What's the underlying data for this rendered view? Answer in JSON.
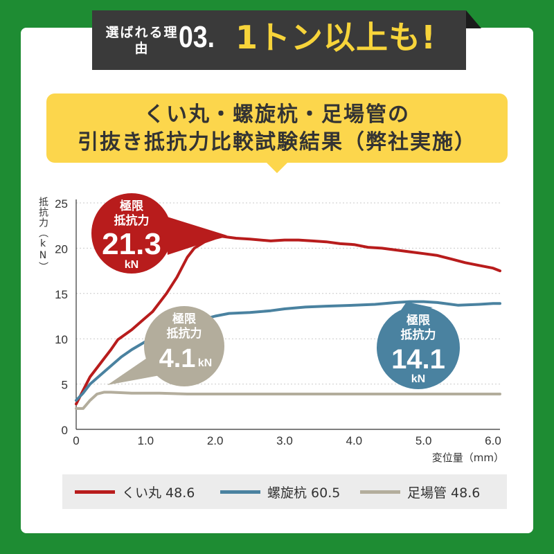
{
  "header": {
    "reason_label": "選ばれる理由",
    "reason_num": "03.",
    "reason_text": "1トン以上も!"
  },
  "title": {
    "line1": "くい丸・螺旋杭・足場管の",
    "line2": "引抜き抵抗力比較試験結果（弊社実施）"
  },
  "colors": {
    "background": "#1e8c33",
    "header_accent": "#f7d43a",
    "title_box": "#fcd64c",
    "kuimaru": "#b81c1c",
    "rasenkui": "#4a82a0",
    "ashibakan": "#b3ad9c"
  },
  "chart_data": {
    "type": "line",
    "ylabel": "抵抗力（kN）",
    "xlabel": "変位量（mm）",
    "xlim": [
      0,
      6.1
    ],
    "ylim": [
      0,
      25
    ],
    "xticks": [
      "0",
      "1.0",
      "2.0",
      "3.0",
      "4.0",
      "5.0",
      "6.0"
    ],
    "yticks": [
      "0",
      "5",
      "10",
      "15",
      "20",
      "25"
    ],
    "grid": true,
    "legend_position": "bottom",
    "series": [
      {
        "name": "くい丸 48.6",
        "color": "#b81c1c",
        "x": [
          0.0,
          0.1,
          0.2,
          0.3,
          0.4,
          0.5,
          0.6,
          0.8,
          0.95,
          1.1,
          1.3,
          1.45,
          1.6,
          1.7,
          1.85,
          2.0,
          2.1,
          2.3,
          2.5,
          2.8,
          3.0,
          3.2,
          3.4,
          3.6,
          3.8,
          4.0,
          4.2,
          4.4,
          4.6,
          4.8,
          5.0,
          5.2,
          5.4,
          5.6,
          5.8,
          6.0,
          6.1
        ],
        "y": [
          2.8,
          4.3,
          5.8,
          6.8,
          7.8,
          8.8,
          9.9,
          11.0,
          12.0,
          13.0,
          15.0,
          16.8,
          19.0,
          20.0,
          20.7,
          21.1,
          21.3,
          21.1,
          21.0,
          20.8,
          20.9,
          20.9,
          20.8,
          20.7,
          20.5,
          20.4,
          20.1,
          20.0,
          19.8,
          19.6,
          19.4,
          19.2,
          18.8,
          18.4,
          18.1,
          17.8,
          17.5
        ]
      },
      {
        "name": "螺旋杭 60.5",
        "color": "#4a82a0",
        "x": [
          0.0,
          0.1,
          0.2,
          0.35,
          0.5,
          0.65,
          0.8,
          1.0,
          1.2,
          1.4,
          1.6,
          1.8,
          2.0,
          2.2,
          2.5,
          2.8,
          3.0,
          3.3,
          3.6,
          4.0,
          4.3,
          4.6,
          4.8,
          5.0,
          5.2,
          5.5,
          5.8,
          6.0,
          6.1
        ],
        "y": [
          3.2,
          4.0,
          5.0,
          6.0,
          7.0,
          8.0,
          8.8,
          9.7,
          10.5,
          11.2,
          11.7,
          12.1,
          12.5,
          12.8,
          12.9,
          13.1,
          13.3,
          13.5,
          13.6,
          13.7,
          13.8,
          14.0,
          14.1,
          14.1,
          14.0,
          13.7,
          13.8,
          13.9,
          13.9
        ]
      },
      {
        "name": "足場管 48.6",
        "color": "#b3ad9c",
        "x": [
          0.0,
          0.1,
          0.2,
          0.3,
          0.4,
          0.5,
          0.8,
          1.2,
          1.6,
          2.0,
          2.5,
          3.0,
          3.5,
          4.0,
          4.5,
          5.0,
          5.5,
          6.0,
          6.1
        ],
        "y": [
          2.3,
          2.3,
          3.2,
          3.9,
          4.1,
          4.1,
          4.0,
          4.0,
          3.9,
          3.9,
          3.9,
          3.9,
          3.9,
          3.9,
          3.9,
          3.9,
          3.9,
          3.9,
          3.9
        ]
      }
    ],
    "annotations": [
      {
        "label_line1": "極限",
        "label_line2": "抵抗力",
        "value": "21.3",
        "unit": "kN",
        "series": "くい丸 48.6",
        "point": [
          2.1,
          21.3
        ]
      },
      {
        "label_line1": "極限",
        "label_line2": "抵抗力",
        "value": "4.1",
        "unit": "kN",
        "series": "足場管 48.6",
        "point": [
          0.4,
          4.1
        ]
      },
      {
        "label_line1": "極限",
        "label_line2": "抵抗力",
        "value": "14.1",
        "unit": "kN",
        "series": "螺旋杭 60.5",
        "point": [
          4.8,
          14.1
        ]
      }
    ]
  }
}
